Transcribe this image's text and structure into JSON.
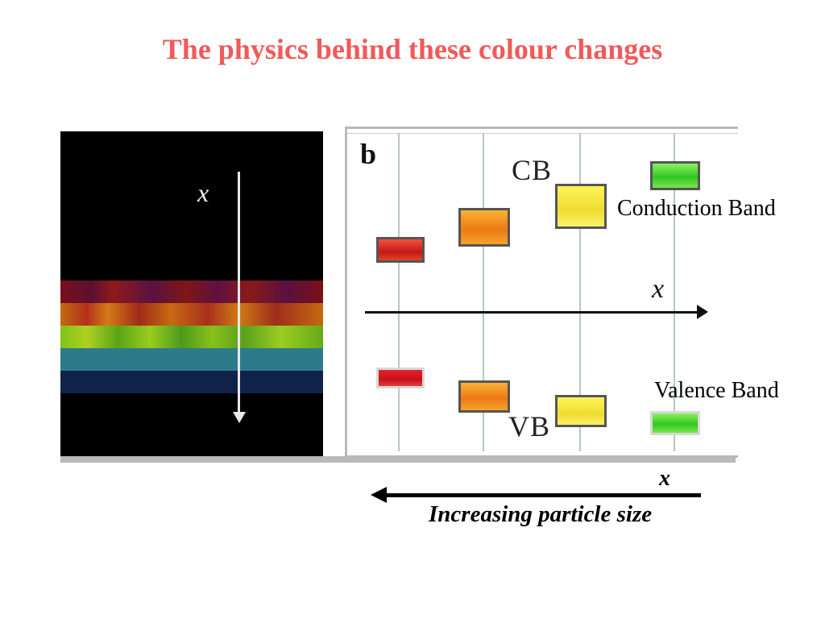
{
  "title": "The physics behind these colour changes",
  "left_image": {
    "axis_label": "x",
    "stripe_colors": [
      "#7a0f1c",
      "#c46a12",
      "#7cc41a",
      "#2c7b8a",
      "#10224a"
    ]
  },
  "band_diagram": {
    "panel_letter": "b",
    "cb_label": "CB",
    "vb_label": "VB",
    "axis_label": "x",
    "level_colors": [
      "#d82a1e",
      "#f08a1c",
      "#f4e43a",
      "#48d028"
    ]
  },
  "annotations": {
    "conduction_band": "Conduction Band",
    "valence_band": "Valence Band",
    "x_label": "x",
    "size_caption": "Increasing particle size"
  }
}
